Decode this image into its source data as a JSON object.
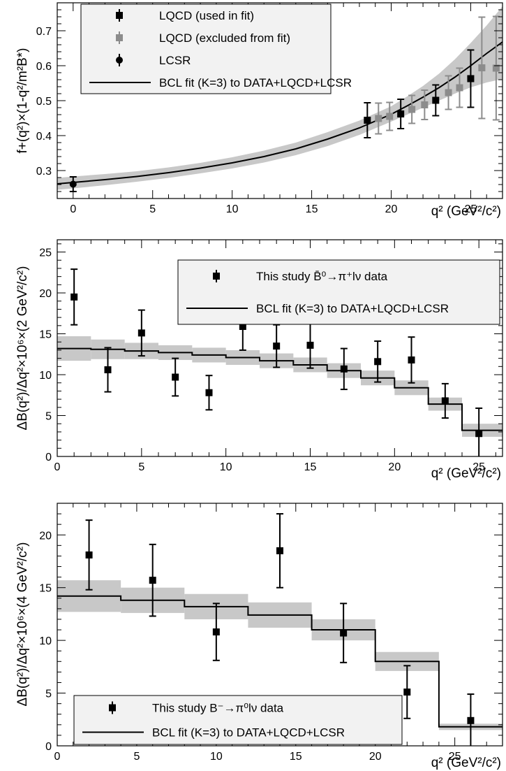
{
  "chart_data": [
    {
      "type": "scatter",
      "ylabel": "f+(q²)×(1-q²/m²B*)",
      "xlabel": "q² (GeV²/c²)",
      "xlim": [
        -1,
        27
      ],
      "ylim": [
        0.22,
        0.78
      ],
      "xticks": [
        "0",
        "5",
        "10",
        "15",
        "20",
        "25"
      ],
      "yticks": [
        "0.3",
        "0.4",
        "0.5",
        "0.6",
        "0.7"
      ],
      "legend_placement": "top-left",
      "legend": [
        "LQCD (used in fit)",
        "LQCD (excluded from fit)",
        "LCSR",
        "BCL fit (K=3) to DATA+LQCD+LCSR"
      ],
      "series": [
        {
          "name": "LQCD (used in fit)",
          "color": "#000000",
          "marker": "square",
          "points": [
            {
              "x": 18.5,
              "y": 0.444,
              "err": 0.05
            },
            {
              "x": 20.6,
              "y": 0.462,
              "err": 0.042
            },
            {
              "x": 22.8,
              "y": 0.501,
              "err": 0.044
            },
            {
              "x": 25.0,
              "y": 0.563,
              "err": 0.082
            }
          ]
        },
        {
          "name": "LQCD (excluded from fit)",
          "color": "#8c8c8c",
          "marker": "square",
          "points": [
            {
              "x": 19.2,
              "y": 0.449,
              "err": 0.044
            },
            {
              "x": 19.9,
              "y": 0.455,
              "err": 0.04
            },
            {
              "x": 21.3,
              "y": 0.475,
              "err": 0.04
            },
            {
              "x": 22.1,
              "y": 0.488,
              "err": 0.042
            },
            {
              "x": 23.6,
              "y": 0.523,
              "err": 0.048
            },
            {
              "x": 24.3,
              "y": 0.537,
              "err": 0.056
            },
            {
              "x": 25.7,
              "y": 0.594,
              "err": 0.145
            },
            {
              "x": 26.6,
              "y": 0.593,
              "err": 0.148
            }
          ]
        },
        {
          "name": "LCSR",
          "color": "#000000",
          "marker": "circle",
          "points": [
            {
              "x": 0,
              "y": 0.261,
              "err": 0.021
            }
          ]
        }
      ],
      "fit": {
        "name": "BCL fit (K=3) to DATA+LQCD+LCSR",
        "x": [
          -1,
          0,
          2,
          4,
          6,
          8,
          10,
          12,
          14,
          16,
          18,
          20,
          21,
          22,
          23,
          24,
          25,
          26,
          27
        ],
        "y": [
          0.262,
          0.266,
          0.274,
          0.283,
          0.294,
          0.307,
          0.322,
          0.34,
          0.362,
          0.39,
          0.422,
          0.461,
          0.485,
          0.51,
          0.537,
          0.567,
          0.6,
          0.635,
          0.668
        ],
        "band_lo": [
          0.245,
          0.249,
          0.258,
          0.268,
          0.279,
          0.292,
          0.306,
          0.323,
          0.344,
          0.37,
          0.402,
          0.44,
          0.46,
          0.48,
          0.5,
          0.52,
          0.538,
          0.552,
          0.562
        ],
        "band_hi": [
          0.279,
          0.283,
          0.29,
          0.298,
          0.309,
          0.322,
          0.338,
          0.357,
          0.38,
          0.41,
          0.443,
          0.484,
          0.512,
          0.542,
          0.577,
          0.618,
          0.665,
          0.715,
          0.77
        ]
      }
    },
    {
      "type": "scatter",
      "ylabel": "ΔB(q²)/Δq²×10⁶×(2 GeV²/c²)",
      "xlabel": "q² (GeV²/c²)",
      "xlim": [
        0,
        26.4
      ],
      "ylim": [
        0,
        26.5
      ],
      "xticks": [
        "0",
        "5",
        "10",
        "15",
        "20",
        "25"
      ],
      "yticks": [
        "0",
        "5",
        "10",
        "15",
        "20",
        "25"
      ],
      "legend_placement": "top-right",
      "legend": [
        "This study B̄⁰→π⁺lν data",
        "BCL fit (K=3) to DATA+LQCD+LCSR"
      ],
      "series": [
        {
          "name": "This study B̄⁰→π⁺lν data",
          "color": "#000000",
          "marker": "square",
          "points": [
            {
              "x": 1,
              "y": 19.5,
              "err": 3.4
            },
            {
              "x": 3,
              "y": 10.6,
              "err": 2.7
            },
            {
              "x": 5,
              "y": 15.1,
              "err": 2.8
            },
            {
              "x": 7,
              "y": 9.7,
              "err": 2.3
            },
            {
              "x": 9,
              "y": 7.8,
              "err": 2.1
            },
            {
              "x": 11,
              "y": 15.9,
              "err": 2.9
            },
            {
              "x": 13,
              "y": 13.5,
              "err": 2.6
            },
            {
              "x": 15,
              "y": 13.6,
              "err": 2.8
            },
            {
              "x": 17,
              "y": 10.7,
              "err": 2.5
            },
            {
              "x": 19,
              "y": 11.6,
              "err": 2.5
            },
            {
              "x": 21,
              "y": 11.8,
              "err": 2.8
            },
            {
              "x": 23,
              "y": 6.8,
              "err": 2.1
            },
            {
              "x": 25,
              "y": 2.8,
              "err": 3.1
            }
          ]
        }
      ],
      "fit": {
        "name": "BCL fit (K=3) to DATA+LQCD+LCSR",
        "bins": [
          0,
          2,
          4,
          6,
          8,
          10,
          12,
          14,
          16,
          18,
          20,
          22,
          24,
          26.4
        ],
        "values": [
          13.2,
          13.1,
          12.9,
          12.7,
          12.4,
          12.1,
          11.7,
          11.2,
          10.5,
          9.6,
          8.4,
          6.4,
          3.2
        ],
        "band_halfwidth": [
          1.5,
          1.2,
          1.0,
          0.9,
          0.9,
          0.9,
          0.9,
          0.9,
          0.9,
          0.9,
          0.9,
          0.8,
          0.8
        ]
      }
    },
    {
      "type": "scatter",
      "ylabel": "ΔB(q²)/Δq²×10⁶×(4 GeV²/c²)",
      "xlabel": "q² (GeV²/c²)",
      "xlim": [
        0,
        28
      ],
      "ylim": [
        0,
        23
      ],
      "xticks": [
        "0",
        "5",
        "10",
        "15",
        "20",
        "25"
      ],
      "yticks": [
        "0",
        "5",
        "10",
        "15",
        "20"
      ],
      "legend_placement": "bottom-left",
      "legend": [
        "This study B⁻→π⁰lν data",
        "BCL fit (K=3) to DATA+LQCD+LCSR"
      ],
      "series": [
        {
          "name": "This study B⁻→π⁰lν data",
          "color": "#000000",
          "marker": "square",
          "points": [
            {
              "x": 2,
              "y": 18.1,
              "err": 3.3
            },
            {
              "x": 6,
              "y": 15.7,
              "err": 3.4
            },
            {
              "x": 10,
              "y": 10.8,
              "err": 2.7
            },
            {
              "x": 14,
              "y": 18.5,
              "err": 3.5
            },
            {
              "x": 18,
              "y": 10.7,
              "err": 2.8
            },
            {
              "x": 22,
              "y": 5.1,
              "err": 2.5
            },
            {
              "x": 26,
              "y": 2.4,
              "err": 2.5
            }
          ]
        }
      ],
      "fit": {
        "name": "BCL fit (K=3) to DATA+LQCD+LCSR",
        "bins": [
          0,
          4,
          8,
          12,
          16,
          20,
          24,
          28
        ],
        "values": [
          14.2,
          13.8,
          13.2,
          12.4,
          11.0,
          8.0,
          1.8
        ],
        "band_halfwidth": [
          1.5,
          1.2,
          1.2,
          1.2,
          1.0,
          0.9,
          0.3
        ]
      }
    }
  ]
}
